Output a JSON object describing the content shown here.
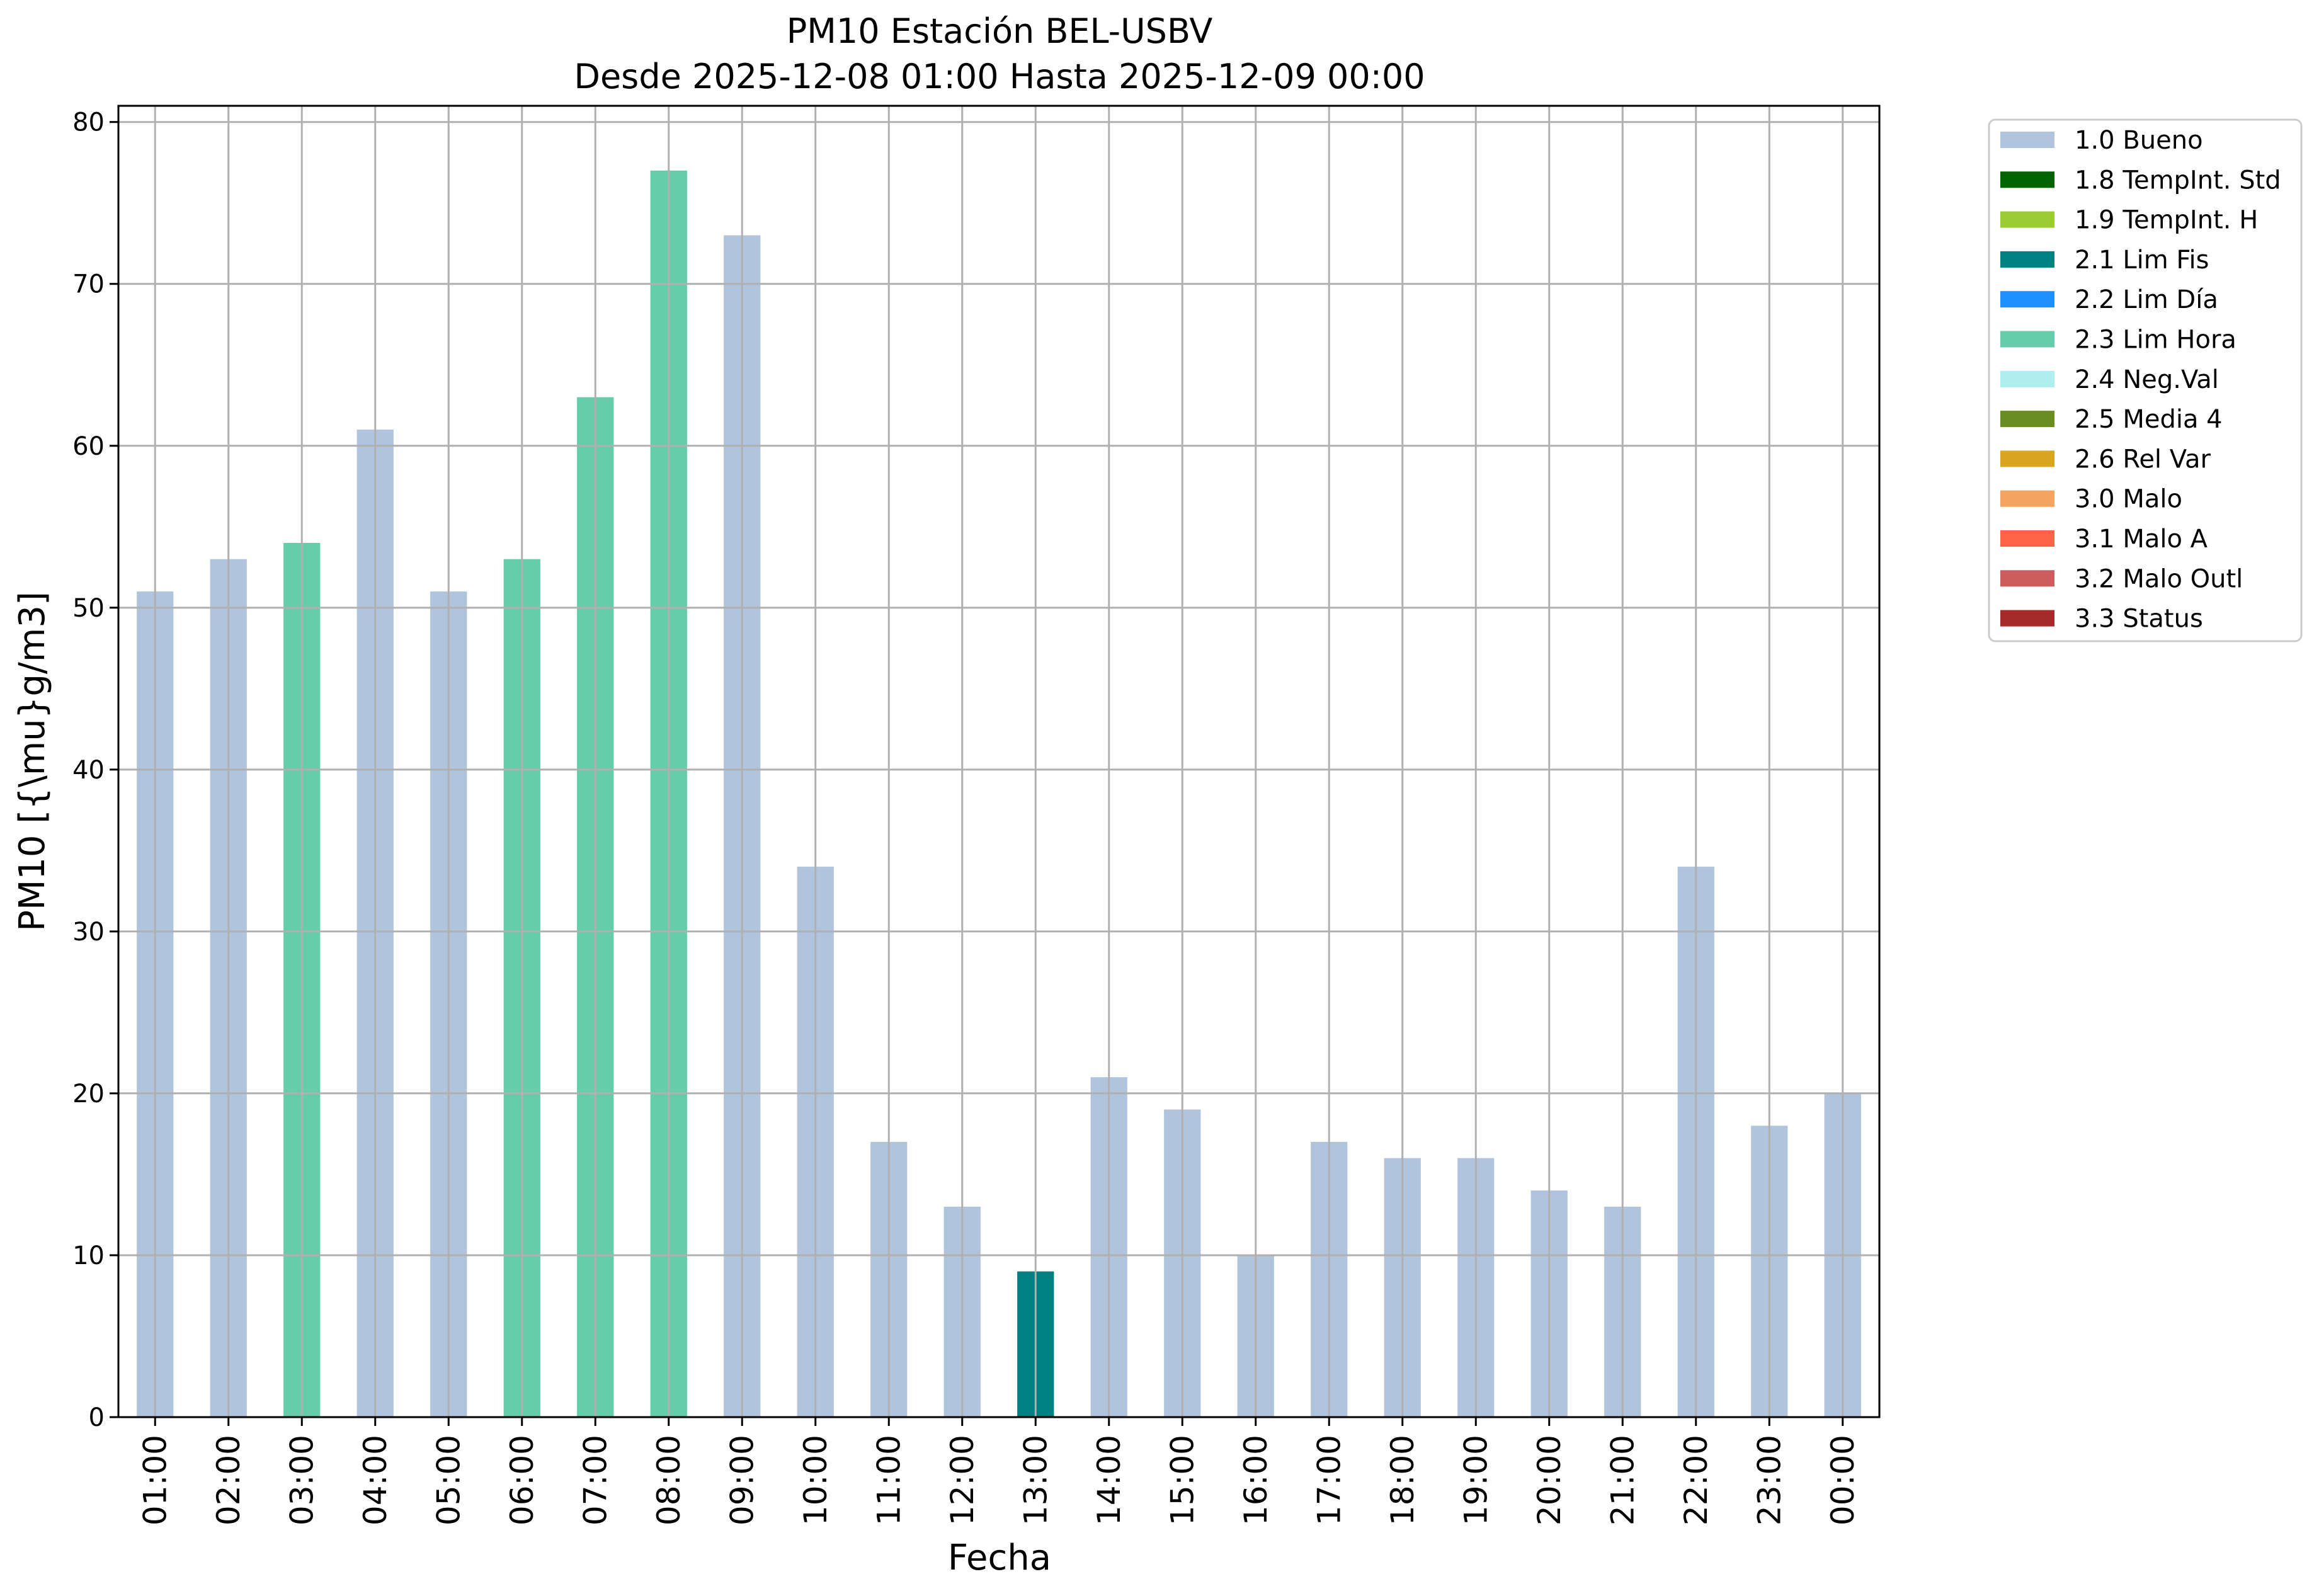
{
  "chart_data": {
    "type": "bar",
    "title": "PM10 Estación BEL-USBV",
    "subtitle": "Desde 2025-12-08 01:00 Hasta 2025-12-09 00:00",
    "xlabel": "Fecha",
    "ylabel": "PM10 [{\\mu}g/m3]",
    "ylim": [
      0,
      81
    ],
    "yticks": [
      0,
      10,
      20,
      30,
      40,
      50,
      60,
      70,
      80
    ],
    "grid": true,
    "legend_position": "outside-right-top",
    "categories": [
      "01:00",
      "02:00",
      "03:00",
      "04:00",
      "05:00",
      "06:00",
      "07:00",
      "08:00",
      "09:00",
      "10:00",
      "11:00",
      "12:00",
      "13:00",
      "14:00",
      "15:00",
      "16:00",
      "17:00",
      "18:00",
      "19:00",
      "20:00",
      "21:00",
      "22:00",
      "23:00",
      "00:00"
    ],
    "values": [
      51,
      53,
      54,
      61,
      51,
      53,
      63,
      77,
      73,
      34,
      17,
      13,
      9,
      21,
      19,
      10,
      17,
      16,
      16,
      14,
      13,
      34,
      18,
      20
    ],
    "flags": [
      "1.0 Bueno",
      "1.0 Bueno",
      "2.3 Lim Hora",
      "1.0 Bueno",
      "1.0 Bueno",
      "2.3 Lim Hora",
      "2.3 Lim Hora",
      "2.3 Lim Hora",
      "1.0 Bueno",
      "1.0 Bueno",
      "1.0 Bueno",
      "1.0 Bueno",
      "2.1 Lim Fis",
      "1.0 Bueno",
      "1.0 Bueno",
      "1.0 Bueno",
      "1.0 Bueno",
      "1.0 Bueno",
      "1.0 Bueno",
      "1.0 Bueno",
      "1.0 Bueno",
      "1.0 Bueno",
      "1.0 Bueno",
      "1.0 Bueno"
    ],
    "legend": [
      {
        "label": "1.0 Bueno",
        "color": "#b0c4de"
      },
      {
        "label": "1.8 TempInt. Std",
        "color": "#006400"
      },
      {
        "label": "1.9 TempInt. H",
        "color": "#9acd32"
      },
      {
        "label": "2.1 Lim Fis",
        "color": "#008080"
      },
      {
        "label": "2.2 Lim Día",
        "color": "#1e90ff"
      },
      {
        "label": "2.3 Lim Hora",
        "color": "#66cdaa"
      },
      {
        "label": "2.4 Neg.Val",
        "color": "#afeeee"
      },
      {
        "label": "2.5 Media 4",
        "color": "#6b8e23"
      },
      {
        "label": "2.6 Rel Var",
        "color": "#daa520"
      },
      {
        "label": "3.0 Malo",
        "color": "#f4a460"
      },
      {
        "label": "3.1 Malo A",
        "color": "#ff6347"
      },
      {
        "label": "3.2 Malo Outl",
        "color": "#cd5c5c"
      },
      {
        "label": "3.3 Status",
        "color": "#a52a2a"
      }
    ]
  }
}
